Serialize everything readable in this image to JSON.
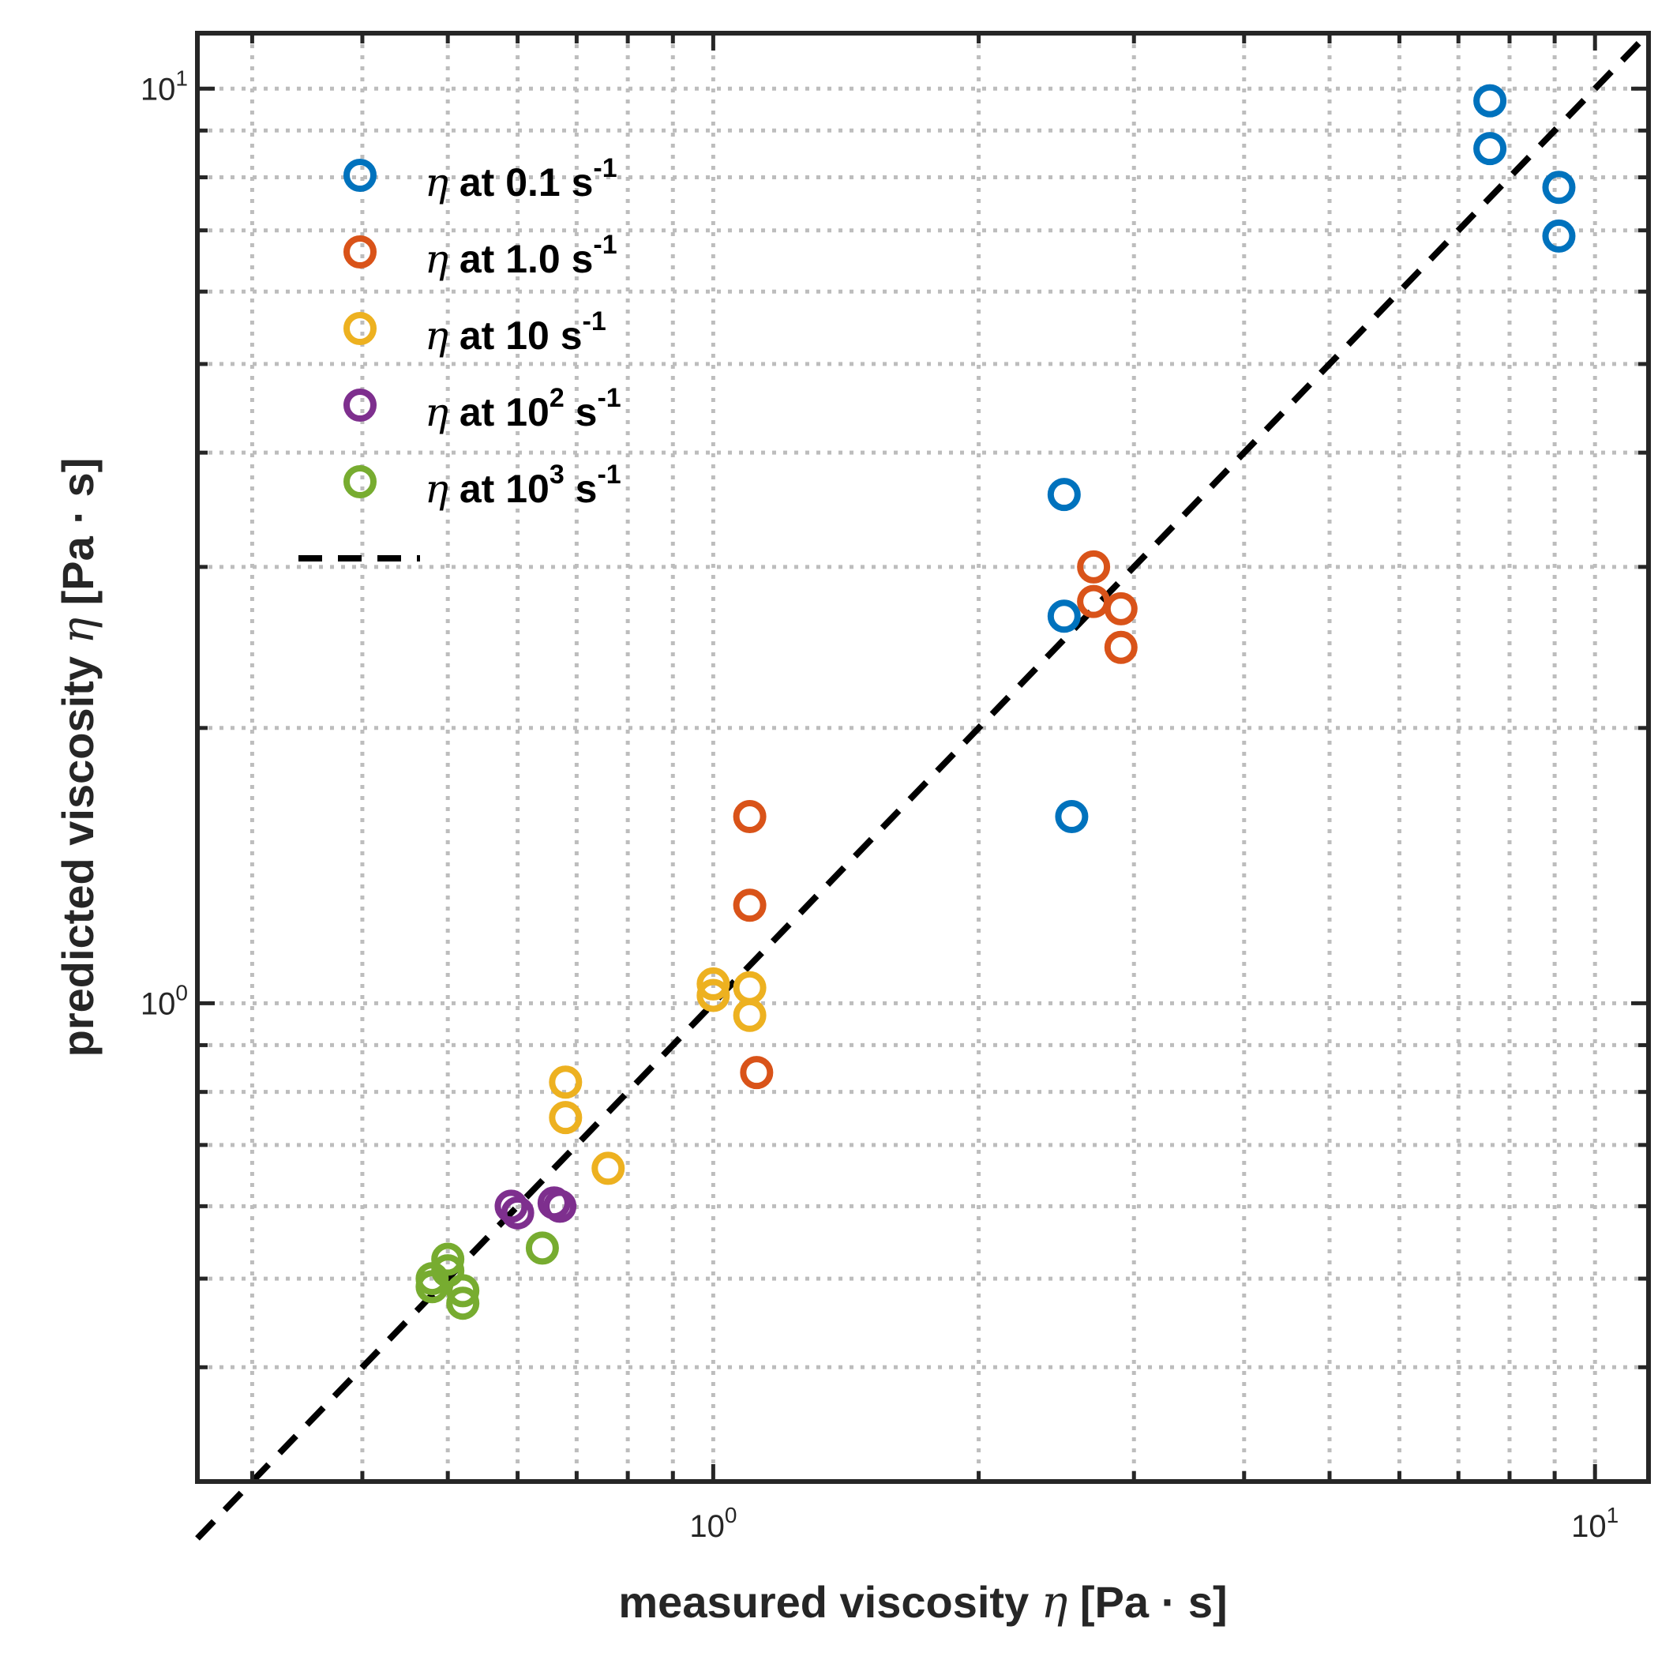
{
  "chart_data": {
    "type": "scatter",
    "xscale": "log",
    "yscale": "log",
    "xlim": [
      0.26,
      11.5
    ],
    "ylim": [
      0.3,
      11.5
    ],
    "grid": true,
    "legend_position": "top-left",
    "xlabel": {
      "prefix": "measured viscosity ",
      "symbol": "η",
      "suffix": " [Pa · s]"
    },
    "ylabel": {
      "prefix": "predicted viscosity ",
      "symbol": "η",
      "suffix": " [Pa · s]"
    },
    "x_ticks": [
      {
        "value": 1,
        "base": "10",
        "exp": "0"
      },
      {
        "value": 10,
        "base": "10",
        "exp": "1"
      }
    ],
    "y_ticks": [
      {
        "value": 1,
        "base": "10",
        "exp": "0"
      },
      {
        "value": 10,
        "base": "10",
        "exp": "1"
      }
    ],
    "series": [
      {
        "symbol": "η",
        "text": " at 0.1 s",
        "exp": "-1",
        "color": "#0072BD",
        "points": [
          [
            7.6,
            9.7
          ],
          [
            7.6,
            8.6
          ],
          [
            9.1,
            7.8
          ],
          [
            9.1,
            6.9
          ],
          [
            2.5,
            3.6
          ],
          [
            2.5,
            2.65
          ],
          [
            2.55,
            1.6
          ]
        ]
      },
      {
        "symbol": "η",
        "text": " at 1.0 s",
        "exp": "-1",
        "color": "#D95319",
        "points": [
          [
            2.7,
            3.0
          ],
          [
            2.7,
            2.75
          ],
          [
            2.9,
            2.7
          ],
          [
            2.9,
            2.45
          ],
          [
            1.1,
            1.6
          ],
          [
            1.1,
            1.28
          ],
          [
            1.12,
            0.84
          ]
        ]
      },
      {
        "symbol": "η",
        "text": " at 10 s",
        "exp": "-1",
        "color": "#EDB120",
        "points": [
          [
            1.0,
            1.05
          ],
          [
            1.0,
            1.02
          ],
          [
            1.1,
            1.04
          ],
          [
            1.1,
            0.97
          ],
          [
            0.68,
            0.82
          ],
          [
            0.68,
            0.75
          ],
          [
            0.76,
            0.66
          ]
        ]
      },
      {
        "symbol": "η",
        "text": " at 10",
        "exp_mid": "2",
        "tail": " s",
        "exp": "-1",
        "color": "#7E2F8E",
        "points": [
          [
            0.59,
            0.6
          ],
          [
            0.6,
            0.59
          ],
          [
            0.66,
            0.605
          ],
          [
            0.67,
            0.6
          ]
        ]
      },
      {
        "symbol": "η",
        "text": " at 10",
        "exp_mid": "3",
        "tail": " s",
        "exp": "-1",
        "color": "#77AC30",
        "points": [
          [
            0.5,
            0.525
          ],
          [
            0.5,
            0.51
          ],
          [
            0.48,
            0.5
          ],
          [
            0.48,
            0.49
          ],
          [
            0.52,
            0.485
          ],
          [
            0.52,
            0.47
          ],
          [
            0.64,
            0.54
          ]
        ]
      }
    ],
    "reference_line": {
      "style": "dashed",
      "color": "#000000",
      "label": "",
      "from": [
        0.26,
        0.26
      ],
      "to": [
        11.5,
        11.5
      ]
    }
  }
}
